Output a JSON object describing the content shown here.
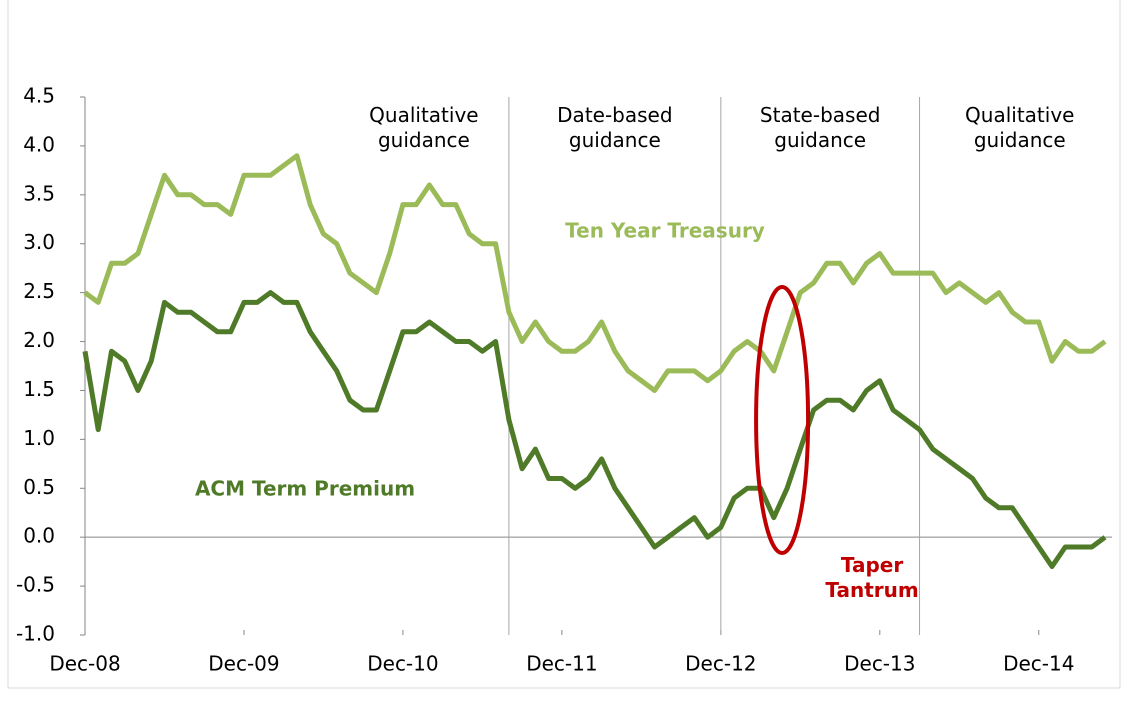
{
  "chart_data": {
    "type": "line",
    "x": [
      "2008-12",
      "2009-01",
      "2009-02",
      "2009-03",
      "2009-04",
      "2009-05",
      "2009-06",
      "2009-07",
      "2009-08",
      "2009-09",
      "2009-10",
      "2009-11",
      "2009-12",
      "2010-01",
      "2010-02",
      "2010-03",
      "2010-04",
      "2010-05",
      "2010-06",
      "2010-07",
      "2010-08",
      "2010-09",
      "2010-10",
      "2010-11",
      "2010-12",
      "2011-01",
      "2011-02",
      "2011-03",
      "2011-04",
      "2011-05",
      "2011-06",
      "2011-07",
      "2011-08",
      "2011-09",
      "2011-10",
      "2011-11",
      "2011-12",
      "2012-01",
      "2012-02",
      "2012-03",
      "2012-04",
      "2012-05",
      "2012-06",
      "2012-07",
      "2012-08",
      "2012-09",
      "2012-10",
      "2012-11",
      "2012-12",
      "2013-01",
      "2013-02",
      "2013-03",
      "2013-04",
      "2013-05",
      "2013-06",
      "2013-07",
      "2013-08",
      "2013-09",
      "2013-10",
      "2013-11",
      "2013-12",
      "2014-01",
      "2014-02",
      "2014-03",
      "2014-04",
      "2014-05",
      "2014-06",
      "2014-07",
      "2014-08",
      "2014-09",
      "2014-10",
      "2014-11",
      "2014-12",
      "2015-01",
      "2015-02",
      "2015-03",
      "2015-04",
      "2015-05"
    ],
    "series": [
      {
        "name": "Ten Year Treasury",
        "color": "#9bbb59",
        "values": [
          2.5,
          2.4,
          2.8,
          2.8,
          2.9,
          3.3,
          3.7,
          3.5,
          3.5,
          3.4,
          3.4,
          3.3,
          3.7,
          3.7,
          3.7,
          3.8,
          3.9,
          3.4,
          3.1,
          3.0,
          2.7,
          2.6,
          2.5,
          2.9,
          3.4,
          3.4,
          3.6,
          3.4,
          3.4,
          3.1,
          3.0,
          3.0,
          2.3,
          2.0,
          2.2,
          2.0,
          1.9,
          1.9,
          2.0,
          2.2,
          1.9,
          1.7,
          1.6,
          1.5,
          1.7,
          1.7,
          1.7,
          1.6,
          1.7,
          1.9,
          2.0,
          1.9,
          1.7,
          2.1,
          2.5,
          2.6,
          2.8,
          2.8,
          2.6,
          2.8,
          2.9,
          2.7,
          2.7,
          2.7,
          2.7,
          2.5,
          2.6,
          2.5,
          2.4,
          2.5,
          2.3,
          2.2,
          2.2,
          1.8,
          2.0,
          1.9,
          1.9,
          2.0
        ]
      },
      {
        "name": "ACM Term Premium",
        "color": "#4f7a28",
        "values": [
          1.9,
          1.1,
          1.9,
          1.8,
          1.5,
          1.8,
          2.4,
          2.3,
          2.3,
          2.2,
          2.1,
          2.1,
          2.4,
          2.4,
          2.5,
          2.4,
          2.4,
          2.1,
          1.9,
          1.7,
          1.4,
          1.3,
          1.3,
          1.7,
          2.1,
          2.1,
          2.2,
          2.1,
          2.0,
          2.0,
          1.9,
          2.0,
          1.2,
          0.7,
          0.9,
          0.6,
          0.6,
          0.5,
          0.6,
          0.8,
          0.5,
          0.3,
          0.1,
          -0.1,
          0.0,
          0.1,
          0.2,
          0.0,
          0.1,
          0.4,
          0.5,
          0.5,
          0.2,
          0.5,
          0.9,
          1.3,
          1.4,
          1.4,
          1.3,
          1.5,
          1.6,
          1.3,
          1.2,
          1.1,
          0.9,
          0.8,
          0.7,
          0.6,
          0.4,
          0.3,
          0.3,
          0.1,
          -0.1,
          -0.3,
          -0.1,
          -0.1,
          -0.1,
          0.0
        ]
      }
    ],
    "xlim": [
      "2008-12",
      "2015-05"
    ],
    "xticks": [
      {
        "value": "2008-12",
        "label": "Dec-08"
      },
      {
        "value": "2009-12",
        "label": "Dec-09"
      },
      {
        "value": "2010-12",
        "label": "Dec-10"
      },
      {
        "value": "2011-12",
        "label": "Dec-11"
      },
      {
        "value": "2012-12",
        "label": "Dec-12"
      },
      {
        "value": "2013-12",
        "label": "Dec-13"
      },
      {
        "value": "2014-12",
        "label": "Dec-14"
      }
    ],
    "ylim": [
      -1,
      4.5
    ],
    "yticks": [
      {
        "value": -1,
        "label": "-1.0"
      },
      -0.5,
      {
        "value": 0,
        "label": "0.0"
      },
      0.5,
      {
        "value": 1,
        "label": "1.0"
      },
      1.5,
      {
        "value": 2,
        "label": "2.0"
      },
      2.5,
      {
        "value": 3,
        "label": "3.0"
      },
      3.5,
      {
        "value": 4,
        "label": "4.0"
      },
      4.5
    ],
    "periods": [
      {
        "label": "Qualitative guidance",
        "end": "2011-08"
      },
      {
        "label": "Date-based guidance",
        "end": "2012-12"
      },
      {
        "label": "State-based guidance",
        "end": "2014-03"
      },
      {
        "label": "Qualitative guidance"
      }
    ],
    "annotation": {
      "text": "Taper Tantrum",
      "color": "#c00000",
      "x": "2013-05"
    }
  }
}
